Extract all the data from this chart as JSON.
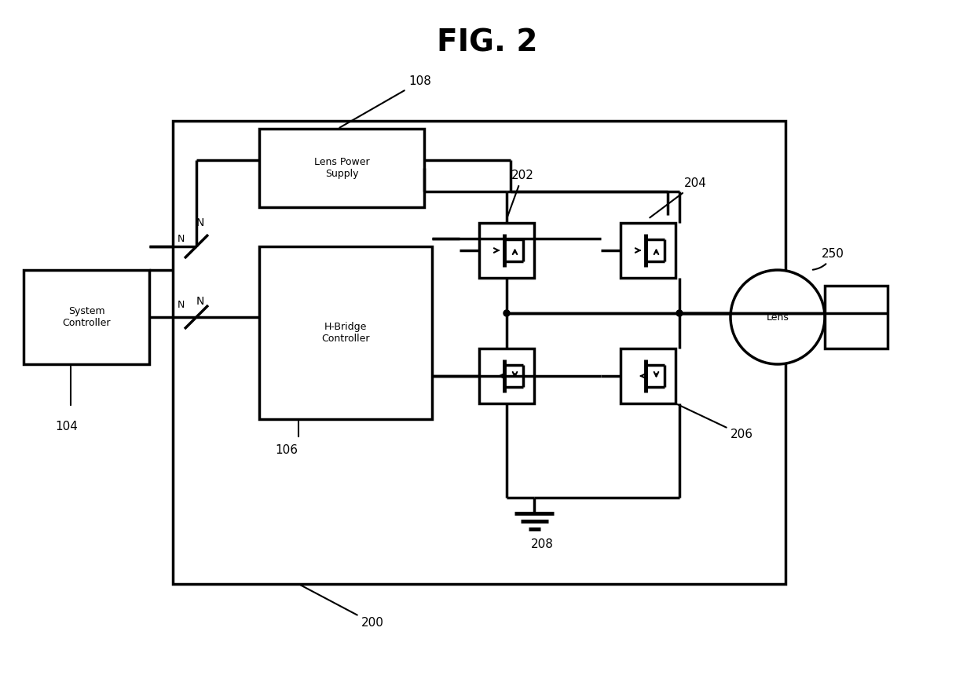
{
  "title": "FIG. 2",
  "bg_color": "#ffffff",
  "line_color": "#000000",
  "lw": 2.5,
  "lw_thin": 1.5,
  "fig_width": 12.4,
  "fig_height": 8.74,
  "labels": {
    "fig_title": "FIG. 2",
    "sys_ctrl": "System\nController",
    "lens_ps": "Lens Power\nSupply",
    "hbridge": "H-Bridge\nController",
    "lens": "Lens",
    "n104": "104",
    "n106": "106",
    "n108": "108",
    "n200": "200",
    "n202": "202",
    "n204": "204",
    "n206": "206",
    "n208": "208",
    "n250": "250",
    "N_top": "N",
    "N_bot": "N"
  }
}
